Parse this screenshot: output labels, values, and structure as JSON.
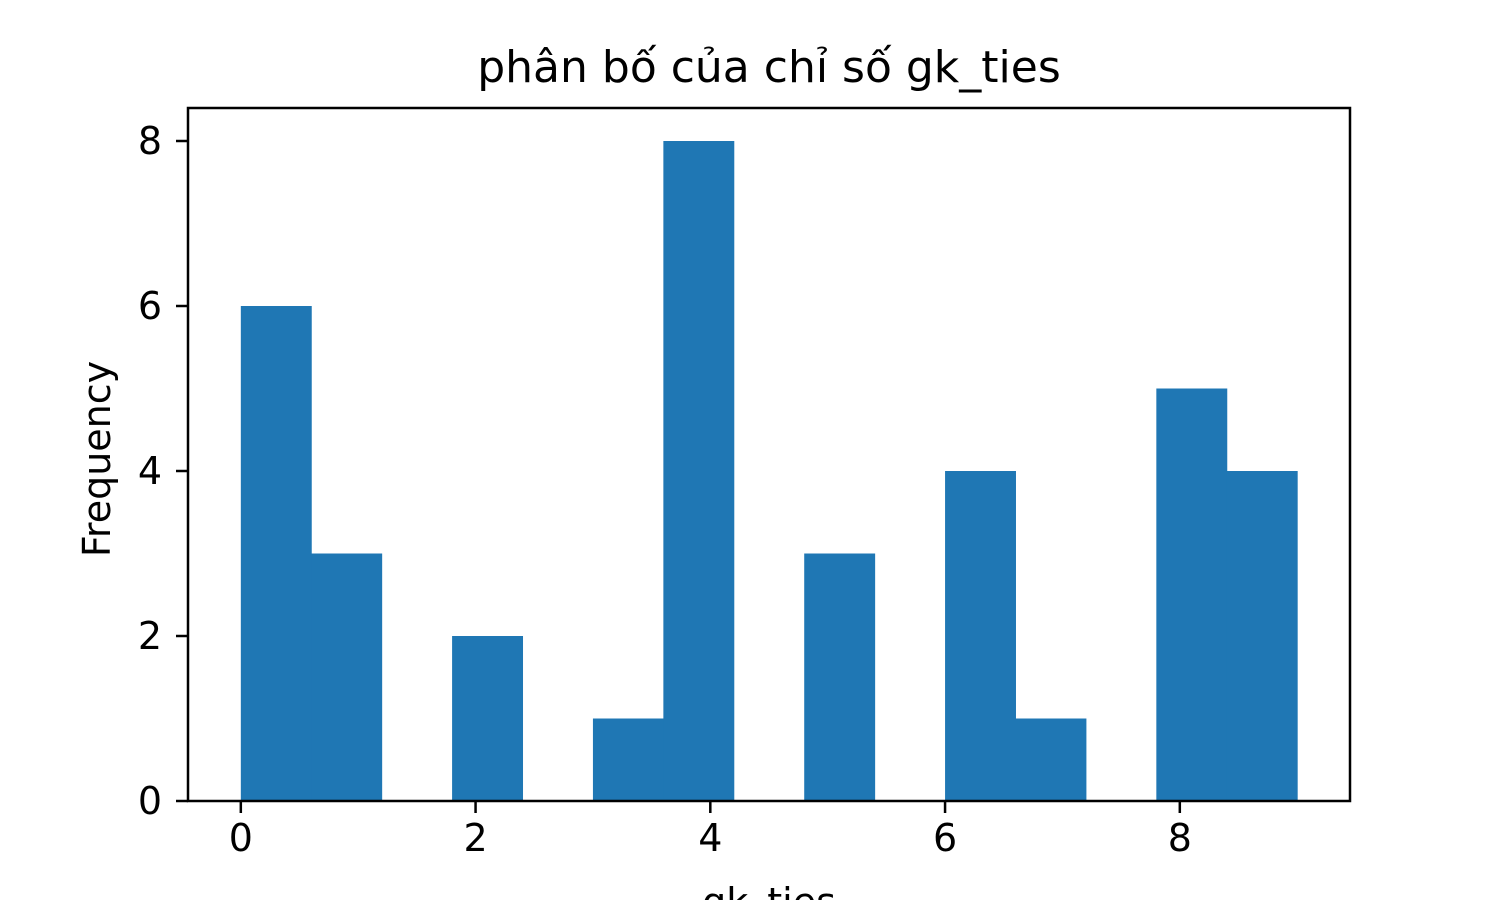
{
  "chart_data": {
    "type": "bar",
    "title": "phân bố của chỉ số gk_ties",
    "xlabel": "gk_ties",
    "ylabel": "Frequency",
    "xlim": [
      -0.45,
      9.45
    ],
    "ylim": [
      0,
      8.4
    ],
    "x_ticks": [
      0,
      2,
      4,
      6,
      8
    ],
    "y_ticks": [
      0,
      2,
      4,
      6,
      8
    ],
    "bin_edges": [
      0,
      0.6,
      1.2,
      1.8,
      2.4,
      3.0,
      3.6,
      4.2,
      4.8,
      5.4,
      6.0,
      6.6,
      7.2,
      7.8,
      8.4,
      9.0
    ],
    "values": [
      6,
      3,
      0,
      2,
      0,
      1,
      8,
      0,
      3,
      0,
      4,
      1,
      0,
      5,
      4
    ],
    "bar_color": "#1f77b4",
    "grid": false,
    "legend": "none"
  }
}
